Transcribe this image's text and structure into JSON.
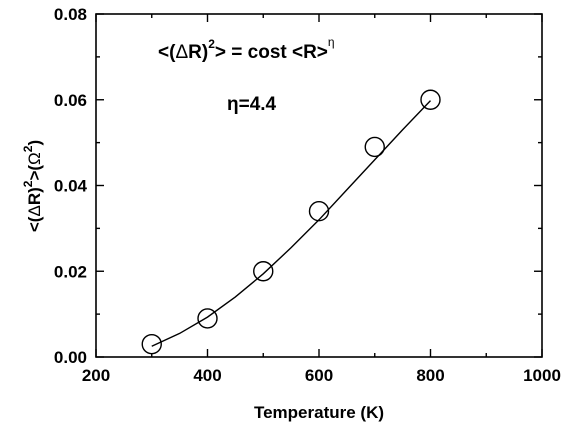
{
  "chart_data": {
    "type": "scatter",
    "xlabel": "Temperature (K)",
    "ylabel_parts": {
      "pre": "<(",
      "delta": "Δ",
      "r": "R)",
      "sup2": "2",
      "mid": ">(",
      "omega": "Ω",
      "sup2b": "2",
      "post": ")"
    },
    "xlim": [
      200,
      1000
    ],
    "ylim": [
      0,
      0.08
    ],
    "x_ticks": [
      200,
      400,
      600,
      800,
      1000
    ],
    "x_tick_labels": [
      "200",
      "400",
      "600",
      "800",
      "1000"
    ],
    "y_ticks": [
      0.0,
      0.02,
      0.04,
      0.06,
      0.08
    ],
    "y_tick_labels": [
      "0.00",
      "0.02",
      "0.04",
      "0.06",
      "0.08"
    ],
    "points": {
      "x": [
        300,
        400,
        500,
        600,
        700,
        800
      ],
      "y": [
        0.003,
        0.009,
        0.02,
        0.034,
        0.049,
        0.06
      ]
    },
    "fit_line": {
      "x": [
        300,
        350,
        400,
        450,
        500,
        550,
        600,
        650,
        700,
        750,
        800
      ],
      "y": [
        0.0025,
        0.0055,
        0.0093,
        0.014,
        0.0194,
        0.0255,
        0.032,
        0.039,
        0.046,
        0.053,
        0.0598
      ]
    },
    "annotation": {
      "formula_pre": "<(",
      "formula_delta": "Δ",
      "formula_r": "R)",
      "formula_sup": "2",
      "formula_post": "> = cost <R>",
      "formula_eta": "η",
      "eta_label": "η=4.4"
    },
    "grid": false
  }
}
